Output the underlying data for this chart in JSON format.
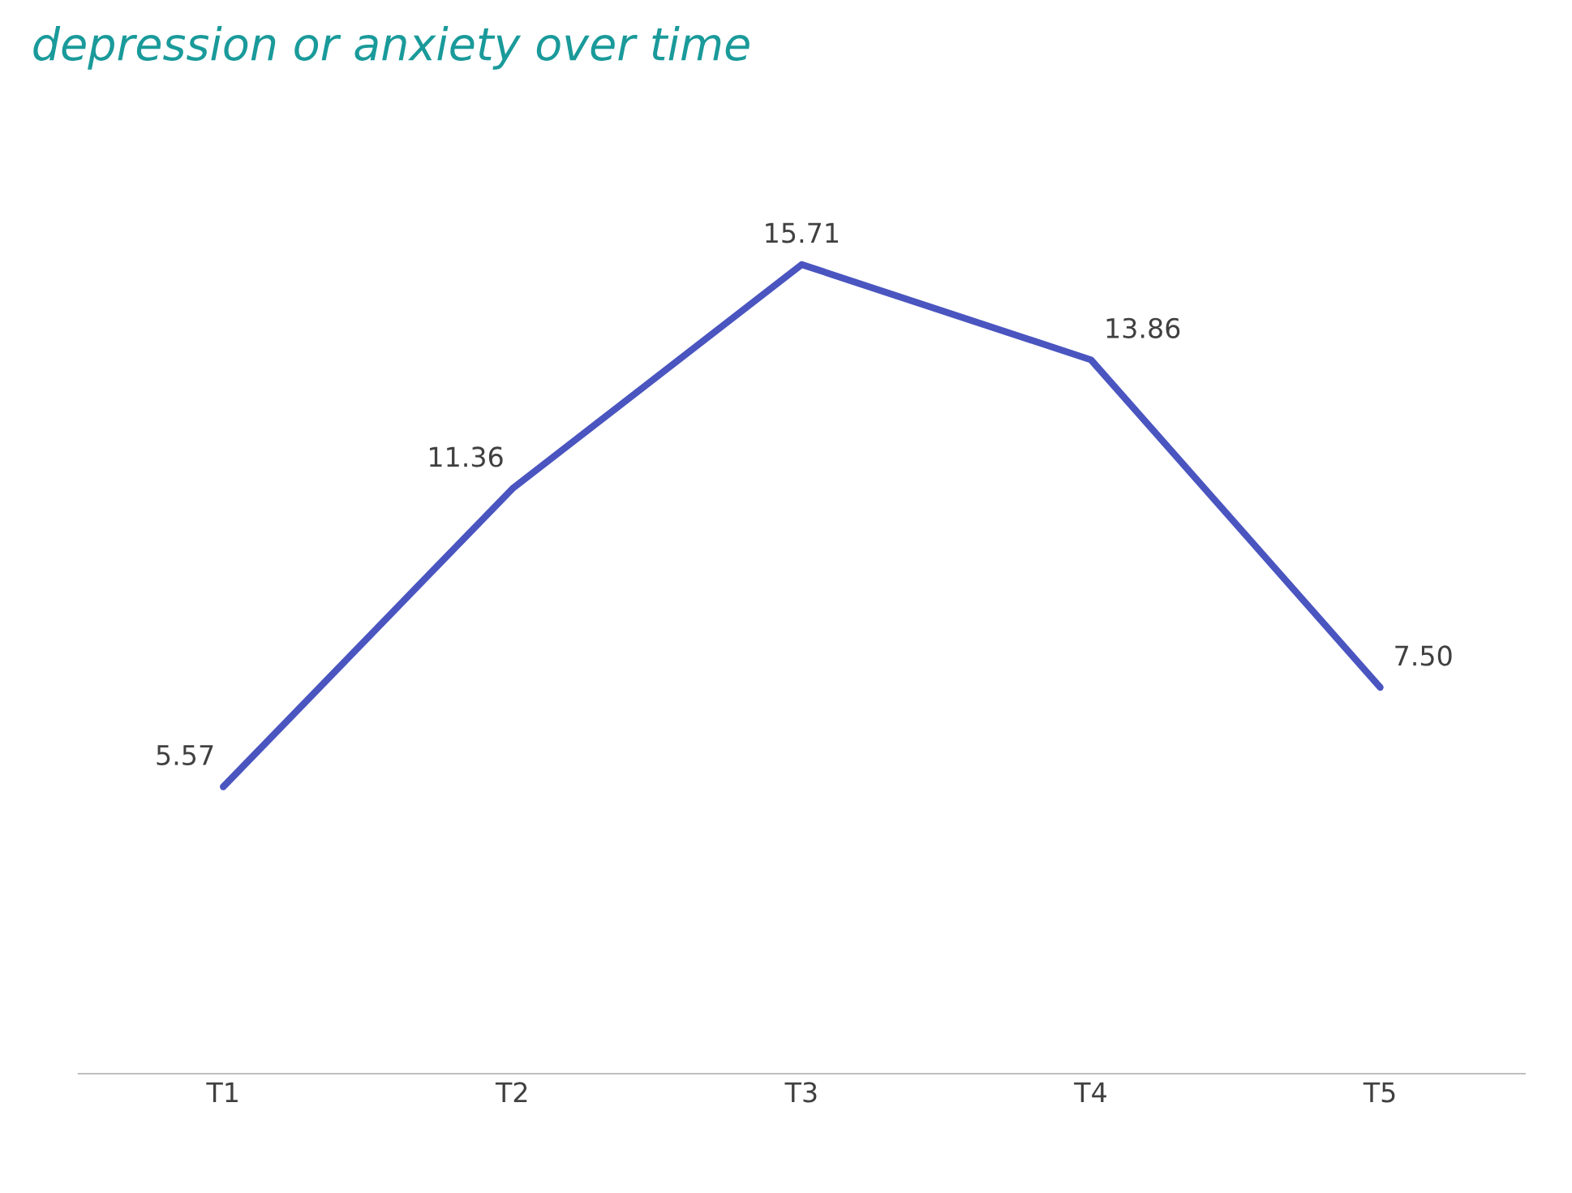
{
  "chart_data": {
    "type": "line",
    "title": "depression or anxiety over time",
    "categories": [
      "T1",
      "T2",
      "T3",
      "T4",
      "T5"
    ],
    "series": [
      {
        "color": "#4a55c0",
        "values": [
          5.57,
          11.36,
          15.71,
          13.86,
          7.5
        ],
        "value_labels": [
          "5.57",
          "11.36",
          "15.71",
          "13.86",
          "7.50"
        ]
      }
    ],
    "grid": false,
    "legend": false,
    "marker": "none",
    "line_style": "solid",
    "tick_labels": "x"
  }
}
